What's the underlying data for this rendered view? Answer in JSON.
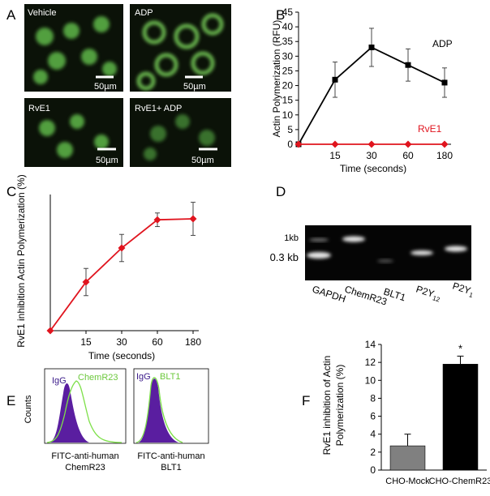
{
  "panel_labels": [
    "A",
    "B",
    "C",
    "D",
    "E",
    "F"
  ],
  "micrographs": [
    {
      "label": "Vehicle",
      "scale": "50µm"
    },
    {
      "label": "ADP",
      "scale": "50µm"
    },
    {
      "label": "RvE1",
      "scale": "50µm"
    },
    {
      "label": "RvE1+ ADP",
      "scale": "50µm"
    }
  ],
  "gel": {
    "markers": [
      "1kb",
      "0.3 kb"
    ],
    "lanes": [
      {
        "text": "GAPDH"
      },
      {
        "text": "ChemR23"
      },
      {
        "text": "BLT1"
      },
      {
        "text": "P2Y",
        "sub": "12"
      },
      {
        "text": "P2Y",
        "sub": "1"
      }
    ]
  },
  "flow": {
    "y_label": "Counts",
    "panels": [
      {
        "control": "IgG",
        "target": "ChemR23",
        "x_label": [
          "FITC-anti-human",
          "ChemR23"
        ]
      },
      {
        "control": "IgG",
        "target": "BLT1",
        "x_label": [
          "FITC-anti-human",
          "BLT1"
        ]
      }
    ]
  },
  "chart_data": [
    {
      "type": "line",
      "x_label": "Time (seconds)",
      "y_label": "Actin Polymerization (RFU)",
      "categories": [
        null,
        "15",
        "30",
        "60",
        "180"
      ],
      "series": [
        {
          "name": "ADP",
          "color": "#000000",
          "marker": "square",
          "values": [
            0,
            22,
            33,
            27,
            21
          ],
          "errors": [
            null,
            6,
            6.5,
            5.5,
            5
          ]
        },
        {
          "name": "RvE1",
          "color": "#e0141e",
          "marker": "diamond",
          "values": [
            0,
            0,
            0,
            0,
            0
          ],
          "errors": [
            null,
            null,
            null,
            null,
            null
          ]
        }
      ],
      "ylim": [
        0,
        45
      ],
      "yticks": [
        0,
        5,
        10,
        15,
        20,
        25,
        30,
        35,
        40,
        45
      ],
      "grid": false
    },
    {
      "type": "line",
      "x_label": "Time (seconds)",
      "y_label": "RvE1 inhibition Actin Polymerization (%)",
      "categories": [
        null,
        "15",
        "30",
        "60",
        "180"
      ],
      "series": [
        {
          "color": "#e0141e",
          "marker": "diamond",
          "values": [
            0,
            25,
            42.5,
            57,
            57.5
          ],
          "errors": [
            null,
            7,
            7,
            3.5,
            8.5
          ]
        }
      ],
      "ylim": [
        0,
        70
      ],
      "grid": false
    },
    {
      "type": "bar",
      "y_label": [
        "RvE1 inhibition of Actin",
        "Polymerization (%)"
      ],
      "categories": [
        "CHO-Mock",
        "CHO-ChemR23"
      ],
      "values": [
        2.7,
        11.8
      ],
      "errors": [
        1.3,
        0.9
      ],
      "colors": [
        "#808080",
        "#000000"
      ],
      "annotation": "*",
      "ylim": [
        0,
        14
      ],
      "yticks": [
        0,
        2,
        4,
        6,
        8,
        10,
        12,
        14
      ],
      "grid": false
    }
  ]
}
